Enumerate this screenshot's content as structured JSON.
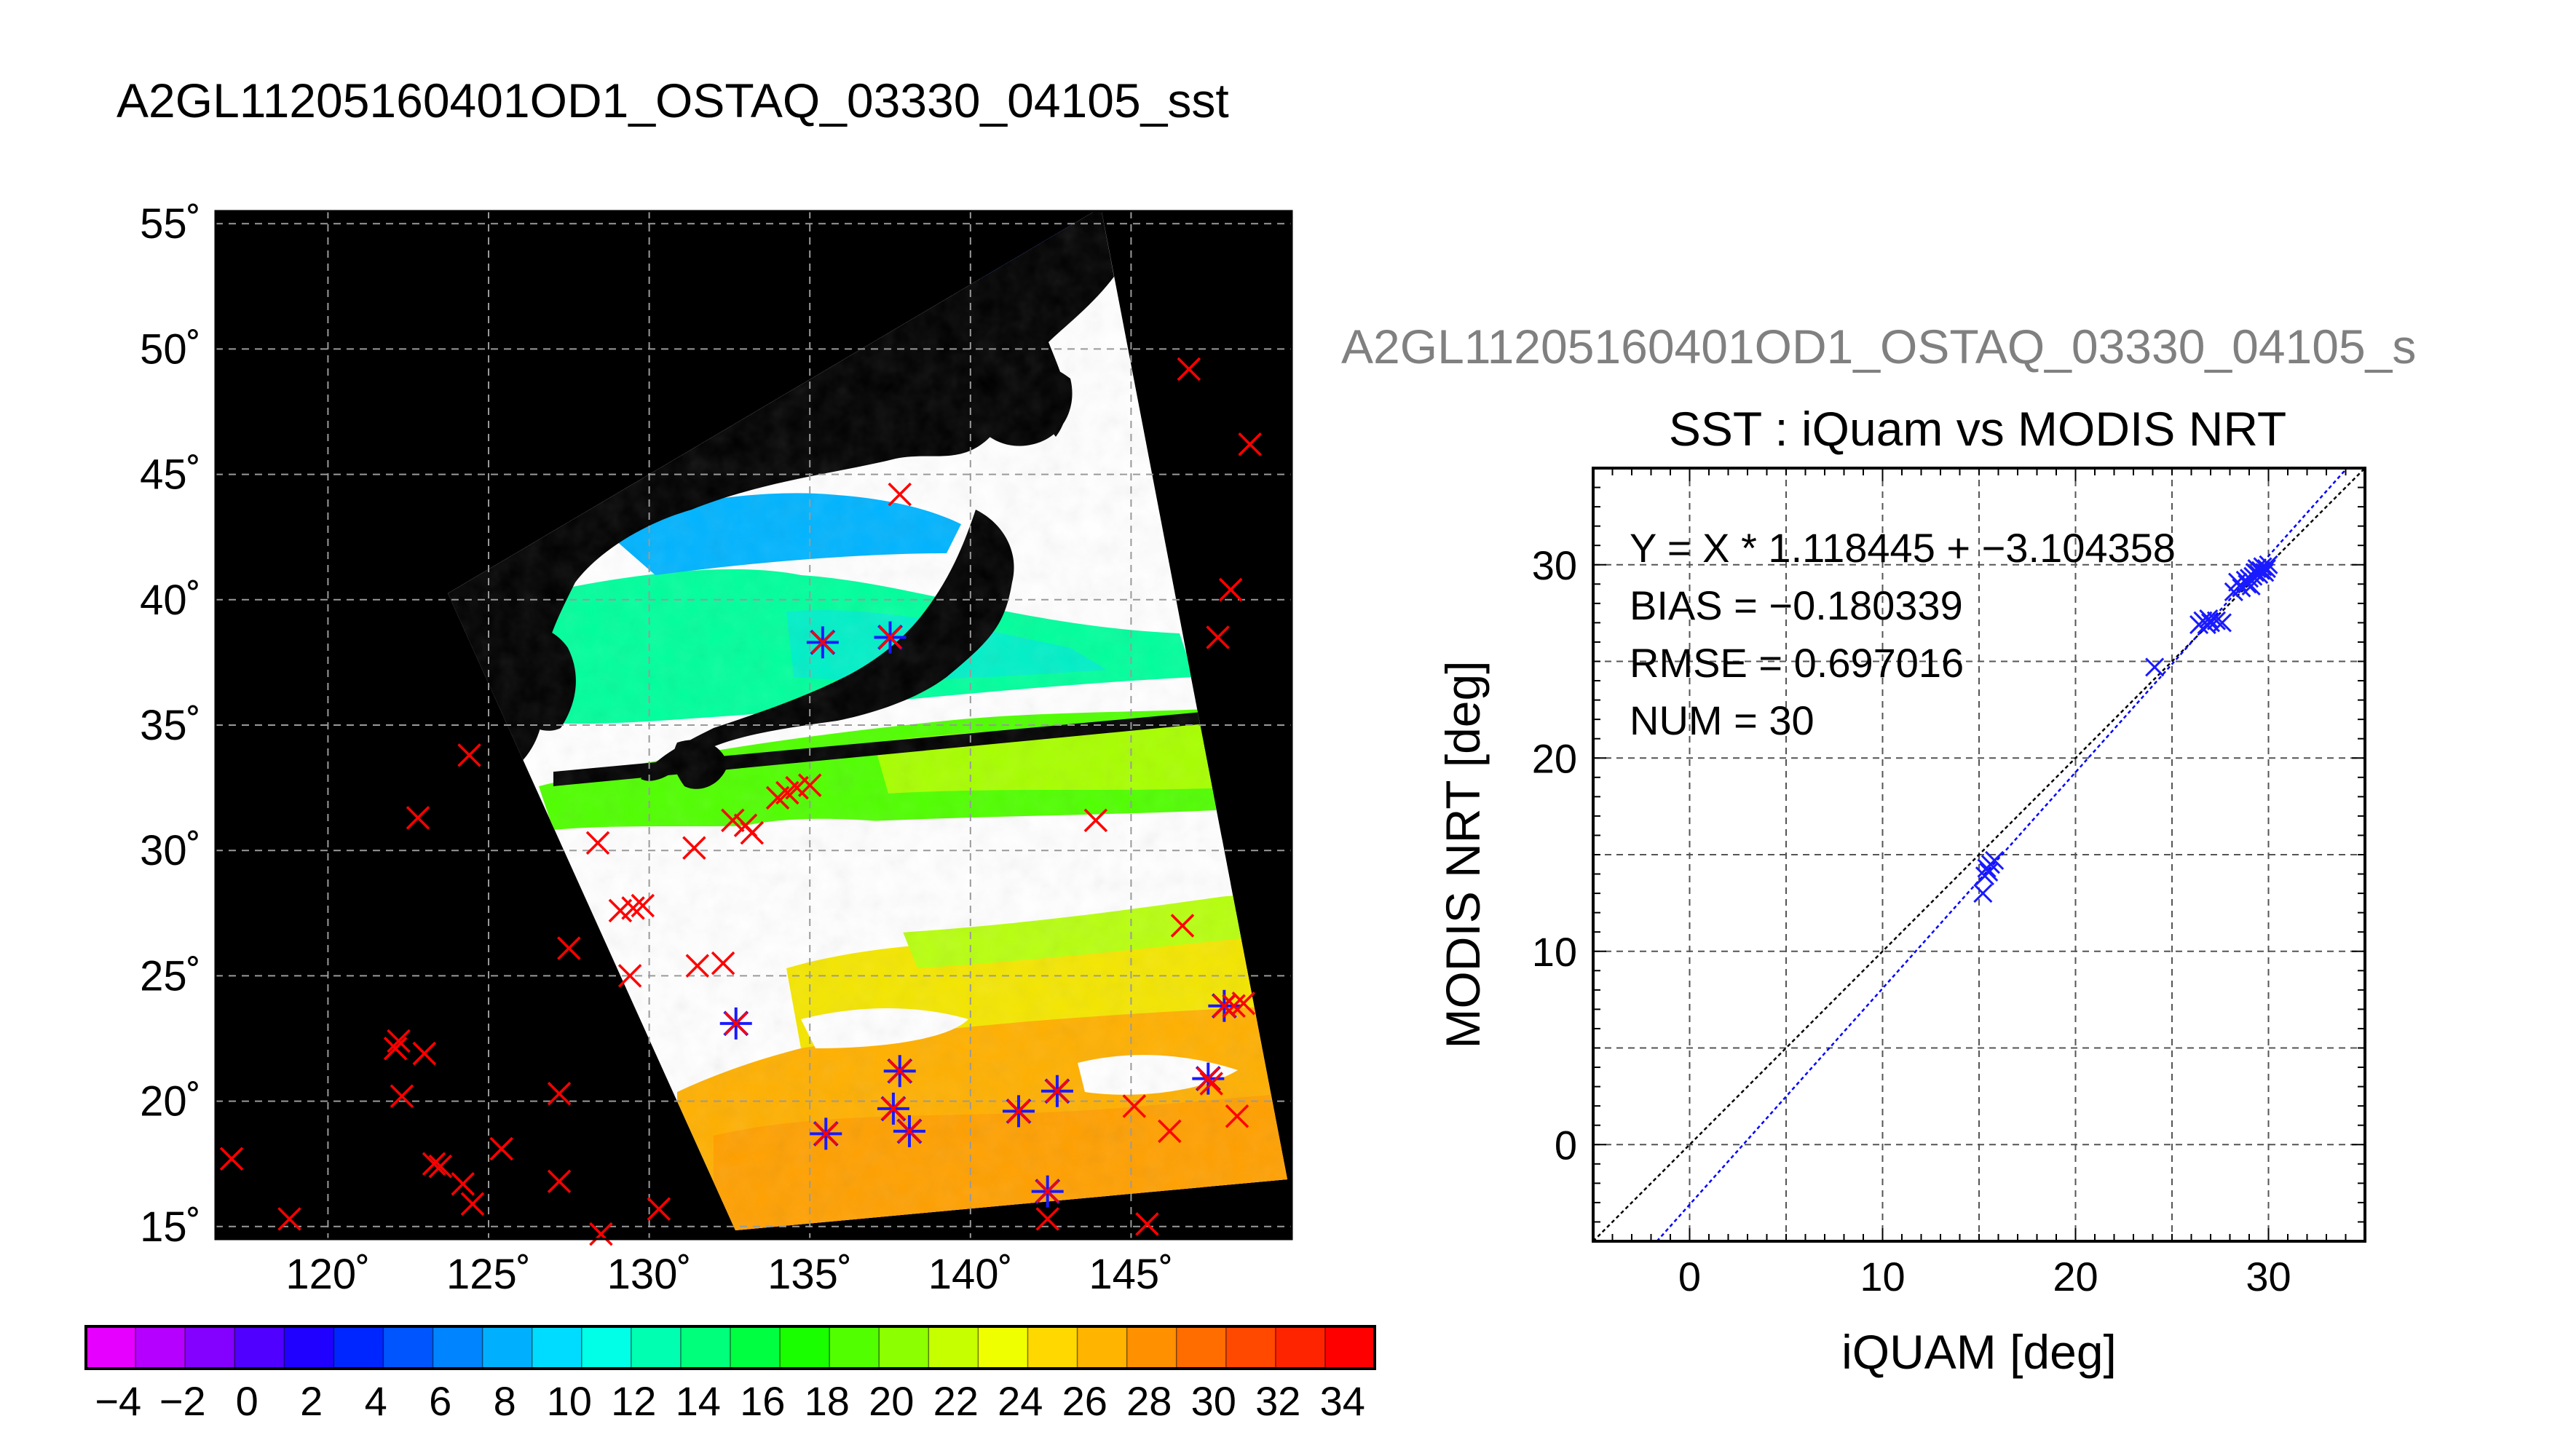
{
  "map_title": "A2GL11205160401OD1_OSTAQ_03330_04105_sst",
  "scatter_file_title": "A2GL11205160401OD1_OSTAQ_03330_04105_s",
  "colors": {
    "map_background": "#000000",
    "cloud": "#ffffff",
    "marker_red": "#ff0000",
    "marker_blue": "#1a1aff",
    "grid_map": "#9a9a9a",
    "identity_line": "#000000",
    "fit_line": "#0000ff"
  },
  "chart_data": [
    {
      "type": "map",
      "title": "A2GL11205160401OD1_OSTAQ_03330_04105_sst",
      "lon_range": [
        116.5,
        150
      ],
      "lat_range": [
        14.5,
        55.5
      ],
      "lon_ticks": [
        120,
        125,
        130,
        135,
        140,
        145
      ],
      "lon_tick_labels": [
        "120˚",
        "125˚",
        "130˚",
        "135˚",
        "140˚",
        "145˚"
      ],
      "lat_ticks": [
        15,
        20,
        25,
        30,
        35,
        40,
        45,
        50,
        55
      ],
      "lat_tick_labels": [
        "15˚",
        "20˚",
        "25˚",
        "30˚",
        "35˚",
        "40˚",
        "45˚",
        "50˚",
        "55˚"
      ],
      "grid": true,
      "colorbar": {
        "min": -5,
        "max": 35,
        "tick_labels": [
          "−4",
          "−2",
          "0",
          "2",
          "4",
          "6",
          "8",
          "10",
          "12",
          "14",
          "16",
          "18",
          "20",
          "22",
          "24",
          "26",
          "28",
          "30",
          "32",
          "34"
        ],
        "tick_values": [
          -4,
          -2,
          0,
          2,
          4,
          6,
          8,
          10,
          12,
          14,
          16,
          18,
          20,
          22,
          24,
          26,
          28,
          30,
          32,
          34
        ],
        "colors": [
          "#e600ff",
          "#b600ff",
          "#8400ff",
          "#5000ff",
          "#2000ff",
          "#0026ff",
          "#0055ff",
          "#0084ff",
          "#00b0ff",
          "#00dcff",
          "#00ffe6",
          "#00ffb0",
          "#00ff7a",
          "#00ff40",
          "#1aff00",
          "#52ff00",
          "#8cff00",
          "#c6ff00",
          "#f0ff00",
          "#ffd800",
          "#ffb400",
          "#ff9000",
          "#ff6c00",
          "#ff4800",
          "#ff2400",
          "#ff0000"
        ]
      },
      "matched_points_red": [
        [
          117,
          17.7
        ],
        [
          118.8,
          15.3
        ],
        [
          122.2,
          22.4
        ],
        [
          122.1,
          22.1
        ],
        [
          122.3,
          20.2
        ],
        [
          123,
          21.9
        ],
        [
          123.3,
          17.5
        ],
        [
          123.5,
          17.4
        ],
        [
          124.2,
          16.7
        ],
        [
          124.5,
          15.9
        ],
        [
          125.4,
          18.1
        ],
        [
          127.2,
          20.3
        ],
        [
          127.2,
          16.8
        ],
        [
          127.5,
          26.1
        ],
        [
          128.4,
          30.3
        ],
        [
          128.5,
          14.7
        ],
        [
          129.1,
          27.6
        ],
        [
          129.5,
          27.7
        ],
        [
          129.8,
          27.8
        ],
        [
          129.4,
          25
        ],
        [
          130.3,
          15.7
        ],
        [
          131.4,
          30.1
        ],
        [
          131.5,
          25.4
        ],
        [
          132.3,
          25.5
        ],
        [
          132.6,
          31.2
        ],
        [
          133,
          31
        ],
        [
          133.2,
          30.7
        ],
        [
          134,
          32.1
        ],
        [
          134.3,
          32.3
        ],
        [
          134.6,
          32.5
        ],
        [
          135,
          32.6
        ],
        [
          135.4,
          38.3
        ],
        [
          137.5,
          38.5
        ],
        [
          137.8,
          44.2
        ],
        [
          142.4,
          15.3
        ],
        [
          143.9,
          31.2
        ],
        [
          145.1,
          19.8
        ],
        [
          145.5,
          15.1
        ],
        [
          146.2,
          18.8
        ],
        [
          146.6,
          27
        ],
        [
          146.8,
          49.2
        ],
        [
          147.5,
          20.7
        ],
        [
          147.7,
          38.5
        ],
        [
          147.9,
          23.8
        ],
        [
          148.1,
          40.4
        ],
        [
          148.3,
          19.4
        ],
        [
          148.2,
          23.8
        ],
        [
          148.5,
          23.9
        ],
        [
          148.7,
          46.2
        ],
        [
          122.8,
          31.3
        ],
        [
          124.4,
          33.8
        ],
        [
          132.7,
          23.1
        ],
        [
          135.5,
          18.7
        ],
        [
          137.6,
          19.7
        ],
        [
          137.8,
          21.2
        ],
        [
          138.1,
          18.8
        ],
        [
          141.5,
          19.6
        ],
        [
          142.4,
          16.4
        ],
        [
          142.7,
          20.4
        ],
        [
          147.4,
          20.9
        ]
      ],
      "matched_points_blue": [
        [
          132.7,
          23.1
        ],
        [
          135.5,
          18.7
        ],
        [
          135.4,
          38.3
        ],
        [
          137.5,
          38.5
        ],
        [
          137.6,
          19.7
        ],
        [
          137.8,
          21.2
        ],
        [
          138.1,
          18.8
        ],
        [
          141.5,
          19.6
        ],
        [
          142.4,
          16.4
        ],
        [
          142.7,
          20.4
        ],
        [
          147.4,
          20.9
        ],
        [
          147.9,
          23.8
        ]
      ]
    },
    {
      "type": "scatter",
      "title": "SST : iQuam vs MODIS NRT",
      "xlabel": "iQUAM [deg]",
      "ylabel": "MODIS NRT [deg]",
      "xlim": [
        -5,
        35
      ],
      "ylim": [
        -5,
        35
      ],
      "xticks": [
        0,
        10,
        20,
        30
      ],
      "yticks": [
        0,
        10,
        20,
        30
      ],
      "grid": true,
      "annotations": [
        "Y = X * 1.118445 + −3.104358",
        "BIAS = −0.180339",
        "RMSE = 0.697016",
        "NUM = 30"
      ],
      "fit": {
        "slope": 1.118445,
        "intercept": -3.104358
      },
      "identity_line": true,
      "points": [
        [
          15.2,
          13.0
        ],
        [
          15.3,
          13.9
        ],
        [
          15.4,
          14.3
        ],
        [
          15.6,
          14.5
        ],
        [
          15.8,
          14.7
        ],
        [
          24.1,
          24.7
        ],
        [
          26.4,
          26.9
        ],
        [
          26.6,
          27.1
        ],
        [
          26.8,
          26.9
        ],
        [
          27.0,
          27.0
        ],
        [
          27.3,
          27.1
        ],
        [
          27.6,
          27.0
        ],
        [
          28.2,
          28.6
        ],
        [
          28.4,
          29.1
        ],
        [
          28.6,
          28.8
        ],
        [
          28.8,
          29.2
        ],
        [
          29.0,
          29.3
        ],
        [
          29.1,
          28.9
        ],
        [
          29.3,
          29.6
        ],
        [
          29.4,
          29.8
        ],
        [
          29.5,
          29.5
        ],
        [
          29.6,
          29.7
        ],
        [
          29.7,
          29.9
        ],
        [
          29.8,
          29.6
        ],
        [
          29.9,
          29.8
        ],
        [
          30.0,
          30.0
        ],
        [
          28.9,
          29.0
        ],
        [
          29.2,
          29.4
        ],
        [
          26.9,
          27.2
        ],
        [
          15.5,
          14.1
        ]
      ]
    }
  ]
}
